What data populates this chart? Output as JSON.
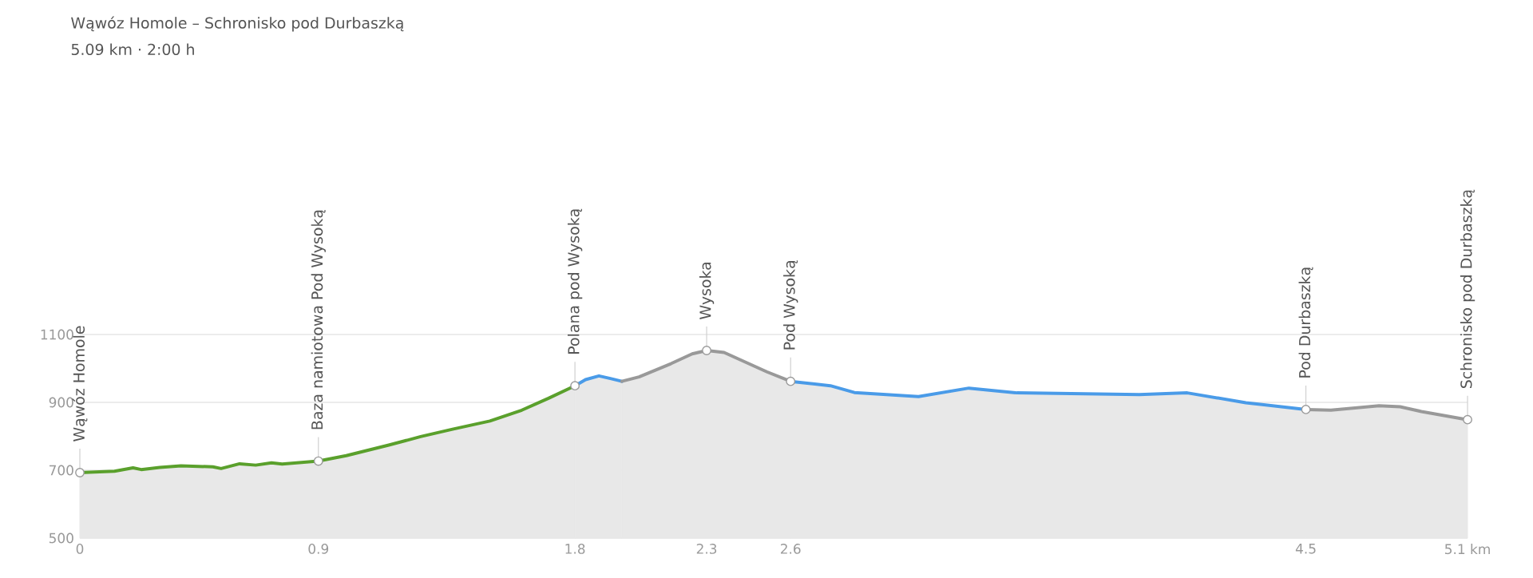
{
  "chart_data": {
    "type": "area",
    "title": "Wąwóz Homole – Schronisko pod Durbaszką",
    "subtitle": "5.09 km · 2:00 h",
    "xlim": [
      0,
      5.09
    ],
    "ylim": [
      500,
      1100
    ],
    "xticks": [
      0,
      {
        "value": 0.875,
        "label": "0.9"
      },
      {
        "value": 1.816,
        "label": "1.8"
      },
      {
        "value": 2.299,
        "label": "2.3"
      },
      {
        "value": 2.607,
        "label": "2.6"
      },
      {
        "value": 4.497,
        "label": "4.5"
      },
      {
        "value": 5.09,
        "label": "5.1 km"
      }
    ],
    "yticks": [
      500,
      700,
      900,
      1100
    ],
    "grid": "y",
    "series": [
      {
        "color": "#5aa02c",
        "x": [
          0,
          0.127,
          0.195,
          0.225,
          0.293,
          0.371,
          0.488,
          0.518,
          0.586,
          0.645,
          0.703,
          0.742,
          0.875,
          0.977,
          1.133,
          1.25,
          1.367,
          1.504,
          1.621,
          1.719,
          1.816
        ],
        "values": [
          693,
          697,
          707,
          702,
          708,
          713,
          710,
          705,
          719,
          715,
          722,
          718,
          727,
          743,
          774,
          799,
          821,
          845,
          877,
          912,
          949
        ]
      },
      {
        "color": "#4a9be8",
        "x": [
          1.816,
          1.855,
          1.904,
          1.943,
          1.988
        ],
        "values": [
          949,
          967,
          978,
          971,
          962
        ]
      },
      {
        "color": "#999999",
        "x": [
          1.988,
          2.051,
          2.168,
          2.246,
          2.299,
          2.363,
          2.52,
          2.607
        ],
        "values": [
          962,
          975,
          1014,
          1043,
          1053,
          1047,
          990,
          962
        ]
      },
      {
        "color": "#4a9be8",
        "x": [
          2.607,
          2.753,
          2.841,
          3.076,
          3.261,
          3.437,
          3.886,
          4.062,
          4.277,
          4.497
        ],
        "values": [
          962,
          949,
          929,
          917,
          942,
          928,
          923,
          928,
          899,
          879
        ]
      },
      {
        "color": "#999999",
        "x": [
          4.497,
          4.589,
          4.765,
          4.843,
          4.921,
          5.09
        ],
        "values": [
          879,
          877,
          890,
          887,
          873,
          849
        ]
      }
    ],
    "annotations": [
      {
        "text": "Wąwóz Homole",
        "x": 0,
        "y": 693
      },
      {
        "text": "Baza namiotowa Pod Wysoką",
        "x": 0.875,
        "y": 727
      },
      {
        "text": "Polana pod Wysoką",
        "x": 1.816,
        "y": 949
      },
      {
        "text": "Wysoka",
        "x": 2.299,
        "y": 1053
      },
      {
        "text": "Pod Wysoką",
        "x": 2.607,
        "y": 962
      },
      {
        "text": "Pod Durbaszką",
        "x": 4.497,
        "y": 879
      },
      {
        "text": "Schronisko pod Durbaszką",
        "x": 5.09,
        "y": 849
      }
    ]
  }
}
